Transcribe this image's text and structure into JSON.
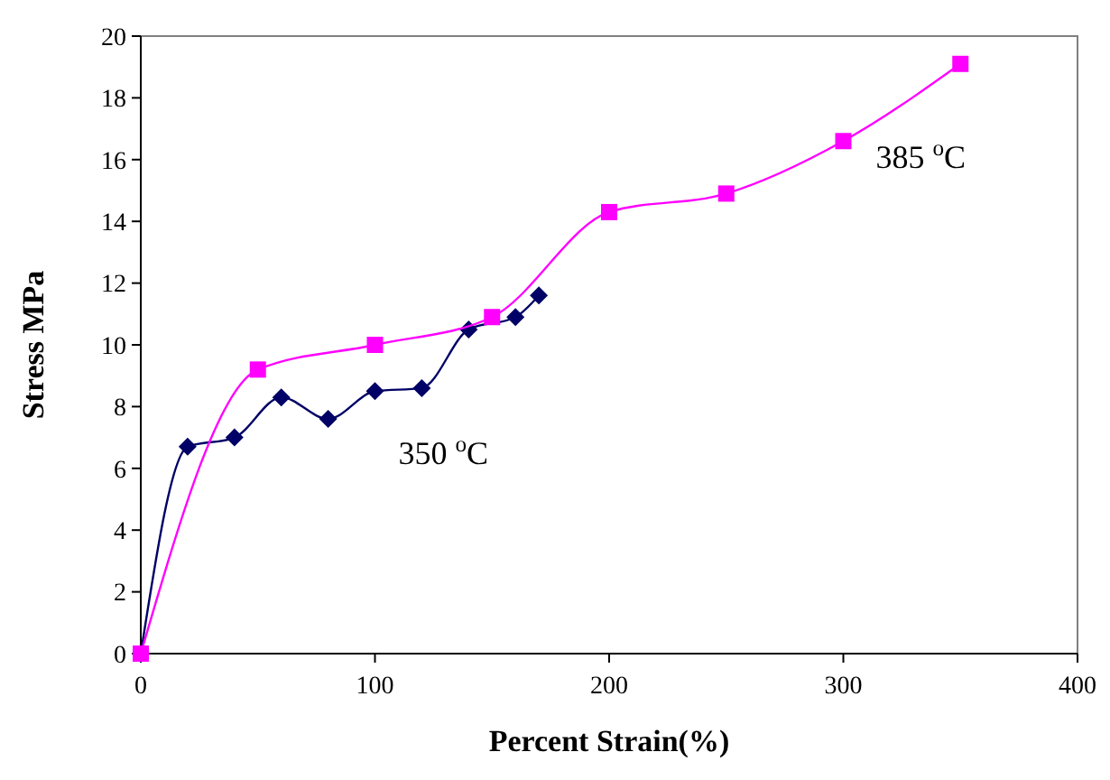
{
  "chart_data": {
    "type": "line",
    "xlabel": "Percent Strain(%)",
    "ylabel": "Stress MPa",
    "xlim": [
      0,
      400
    ],
    "xticks": [
      0,
      100,
      200,
      300,
      400
    ],
    "ylim": [
      0,
      20
    ],
    "yticks": [
      0,
      2,
      4,
      6,
      8,
      10,
      12,
      14,
      16,
      18,
      20
    ],
    "grid": false,
    "series": [
      {
        "name": "350 $^{o}$C",
        "color": "#000066",
        "marker": "diamond",
        "x": [
          0,
          20,
          40,
          60,
          80,
          100,
          120,
          140,
          160,
          170
        ],
        "values": [
          0,
          6.7,
          7.0,
          8.3,
          7.6,
          8.5,
          8.6,
          10.5,
          10.9,
          11.6
        ]
      },
      {
        "name": "385 $^{o}$C",
        "color": "#ff00ff",
        "marker": "square",
        "x": [
          0,
          50,
          100,
          150,
          200,
          250,
          300,
          350
        ],
        "values": [
          0,
          9.2,
          10.0,
          10.9,
          14.3,
          14.9,
          16.6,
          19.1
        ]
      }
    ]
  }
}
